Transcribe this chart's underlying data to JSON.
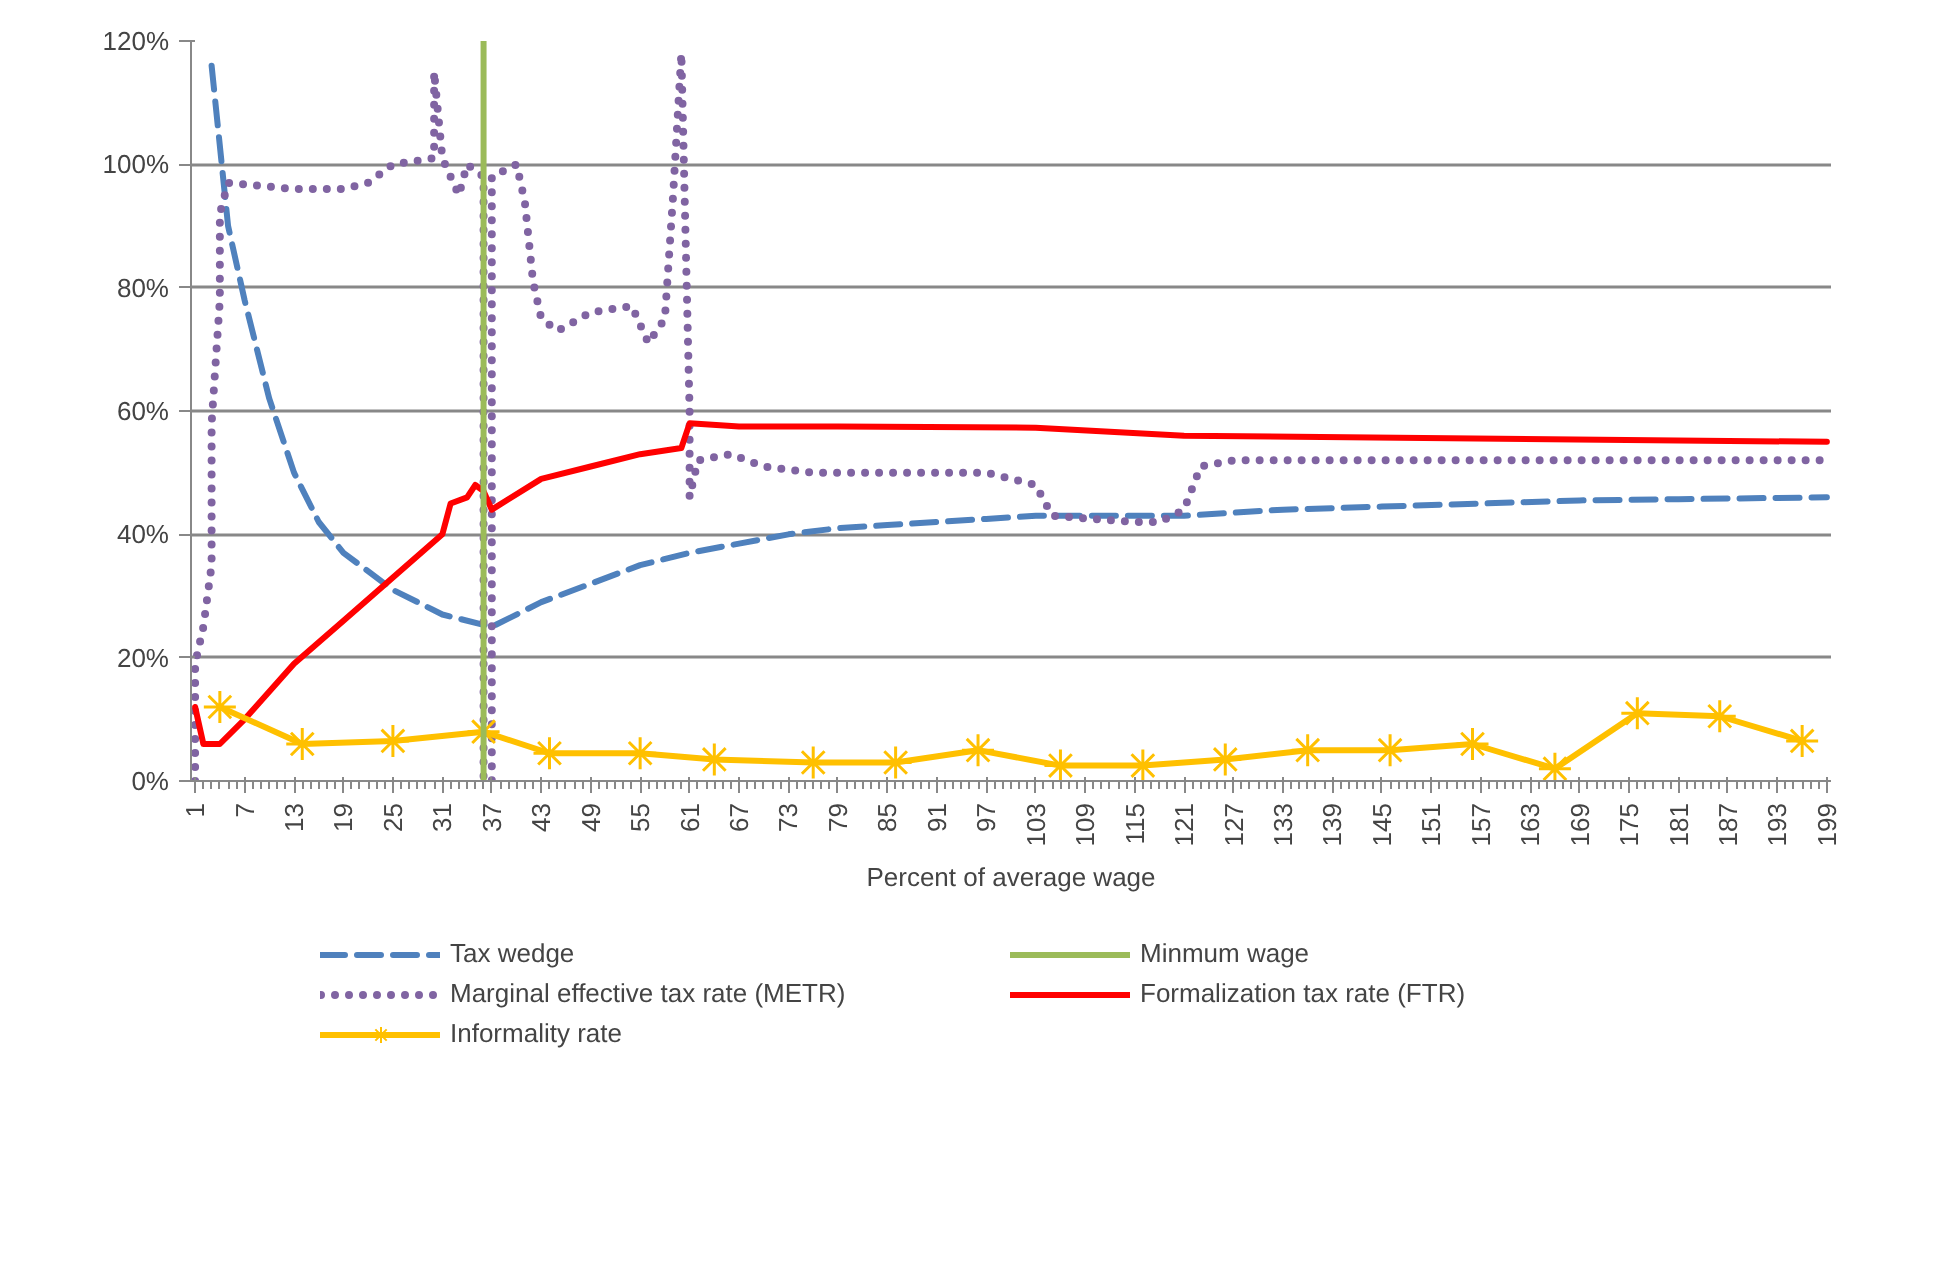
{
  "chart_data": {
    "type": "line",
    "xlabel": "Percent of average wage",
    "xlim": [
      0.5,
      199.5
    ],
    "xticks": [
      1,
      7,
      13,
      19,
      25,
      31,
      37,
      43,
      49,
      55,
      61,
      67,
      73,
      79,
      85,
      91,
      97,
      103,
      109,
      115,
      121,
      127,
      133,
      139,
      145,
      151,
      157,
      163,
      169,
      175,
      181,
      187,
      193,
      199
    ],
    "ylim": [
      0,
      120
    ],
    "yticks": [
      {
        "value": 0,
        "label": "0%"
      },
      {
        "value": 20,
        "label": "20%"
      },
      {
        "value": 40,
        "label": "40%"
      },
      {
        "value": 60,
        "label": "60%"
      },
      {
        "value": 80,
        "label": "80%"
      },
      {
        "value": 100,
        "label": "100%"
      },
      {
        "value": 120,
        "label": "120%"
      }
    ],
    "grid": "y",
    "legend": "bottom",
    "series": [
      {
        "name": "Tax wedge",
        "color": "#4f81bd",
        "line_style": "dashed",
        "x": [
          3,
          5,
          7,
          10,
          13,
          16,
          19,
          25,
          31,
          37,
          43,
          49,
          55,
          61,
          67,
          73,
          79,
          85,
          91,
          97,
          103,
          109,
          115,
          121,
          127,
          133,
          145,
          157,
          169,
          181,
          199
        ],
        "values": [
          116,
          90,
          78,
          62,
          50,
          42,
          37,
          31,
          27,
          25,
          29,
          32,
          35,
          37,
          38.5,
          40,
          41,
          41.5,
          42,
          42.5,
          43,
          43,
          43,
          43,
          43.5,
          44,
          44.5,
          45,
          45.5,
          45.7,
          46
        ]
      },
      {
        "name": "Marginal effective tax rate (METR)",
        "color": "#8064a2",
        "line_style": "dotted",
        "x": [
          1,
          1,
          2,
          3,
          3,
          4,
          4,
          5,
          13,
          19,
          22,
          25,
          30,
          30,
          31,
          33,
          34,
          36,
          36,
          37,
          37,
          40,
          41,
          42,
          43,
          45,
          49,
          54,
          56,
          58,
          59,
          60,
          61,
          61,
          62,
          66,
          70,
          76,
          85,
          97,
          103,
          105,
          115,
          118,
          121,
          123,
          127,
          199
        ],
        "values": [
          0,
          19,
          25,
          35,
          58,
          78,
          92,
          97,
          96,
          96,
          97,
          100,
          101,
          115,
          101,
          95,
          100,
          98,
          0,
          0,
          98,
          100,
          94,
          81,
          75,
          73,
          76,
          77,
          71,
          75,
          95,
          118,
          60,
          46,
          52,
          53,
          51,
          50,
          50,
          50,
          48,
          43,
          42,
          42,
          44,
          51,
          52,
          52
        ]
      },
      {
        "name": "Formalization tax rate (FTR)",
        "color": "#ff0000",
        "line_style": "solid",
        "x": [
          1,
          2,
          4,
          7,
          13,
          19,
          25,
          31,
          32,
          34,
          35,
          36,
          37,
          43,
          49,
          55,
          60,
          61,
          67,
          79,
          103,
          121,
          199
        ],
        "values": [
          12,
          6,
          6,
          10,
          19,
          26,
          33,
          40,
          45,
          46,
          48,
          47,
          44,
          49,
          51,
          53,
          54,
          58,
          57.5,
          57.5,
          57.3,
          56,
          55
        ]
      },
      {
        "name": "Informality rate",
        "color": "#ffc000",
        "line_style": "solid",
        "marker": "cross",
        "x": [
          4,
          14,
          25,
          36,
          44,
          55,
          64,
          76,
          86,
          96,
          106,
          116,
          126,
          136,
          146,
          156,
          166,
          176,
          186,
          196
        ],
        "values": [
          12,
          6,
          6.5,
          8,
          4.5,
          4.5,
          3.5,
          3,
          3,
          5,
          2.5,
          2.5,
          3.5,
          5,
          5,
          6,
          2,
          11,
          10.5,
          6.5
        ]
      }
    ],
    "ref_lines": [
      {
        "axis": "x",
        "value": 36,
        "label": "Minmum wage",
        "color": "#9bbb59",
        "line_style": "solid"
      }
    ]
  }
}
